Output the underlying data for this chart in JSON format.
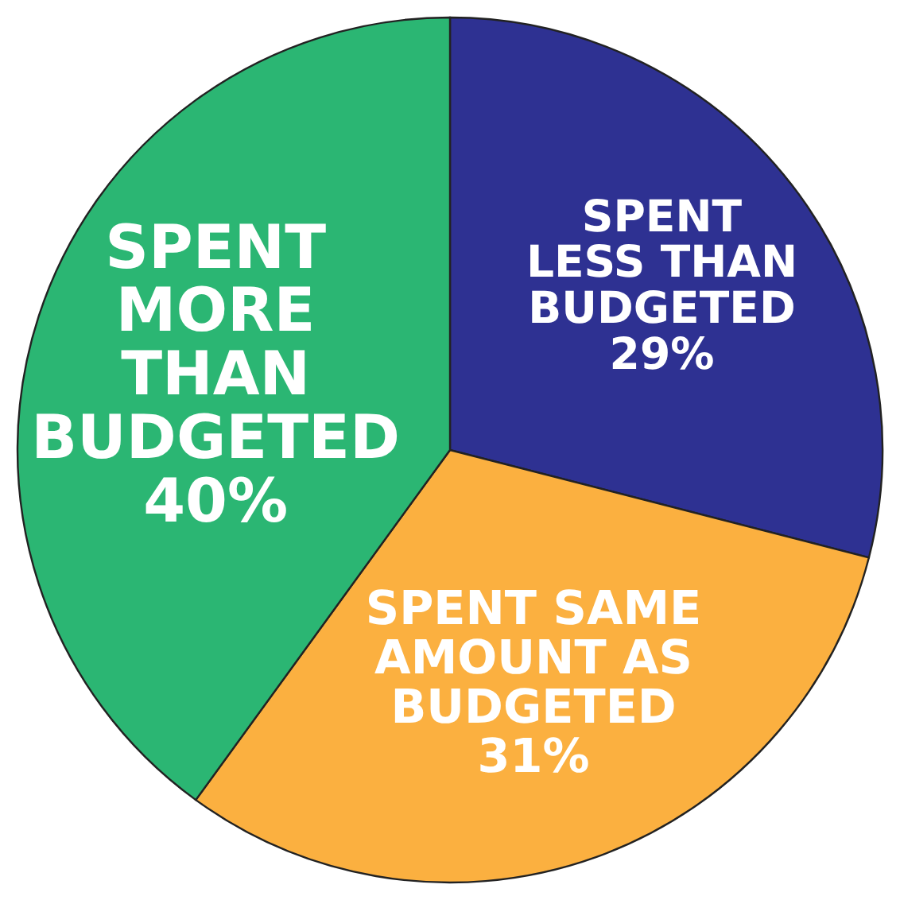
{
  "chart_data": {
    "type": "pie",
    "categories": [
      "SPENT\nLESS THAN\nBUDGETED",
      "SPENT SAME\nAMOUNT AS\nBUDGETED",
      "SPENT\nMORE\nTHAN\nBUDGETED"
    ],
    "values": [
      29,
      31,
      40
    ],
    "value_labels": [
      "29%",
      "31%",
      "40%"
    ],
    "colors": [
      "#2e3192",
      "#fbb040",
      "#2bb673"
    ]
  }
}
